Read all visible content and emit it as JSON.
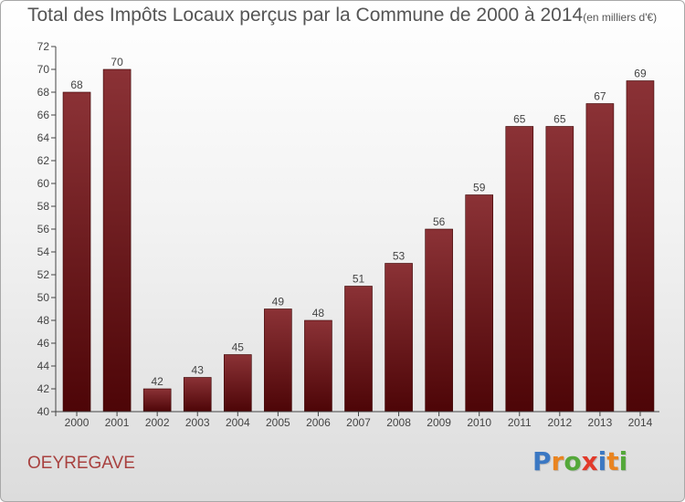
{
  "title": {
    "main": "Total des Impôts Locaux perçus par la Commune de 2000 à 2014",
    "unit": "(en milliers d'€)"
  },
  "commune": "OEYREGAVE",
  "brand": {
    "letters": [
      "P",
      "r",
      "o",
      "x",
      "i",
      "t",
      "i"
    ],
    "colors": [
      "#3b78c3",
      "#e98420",
      "#54a83a",
      "#e23a2a",
      "#3b78c3",
      "#e98420",
      "#54a83a"
    ]
  },
  "colors": {
    "bar_top": "#8b3236",
    "bar_bottom": "#4d0507",
    "axis": "#444444",
    "label": "#444444"
  },
  "chart_data": {
    "type": "bar",
    "title": "Total des Impôts Locaux perçus par la Commune de 2000 à 2014 (en milliers d'€)",
    "xlabel": "",
    "ylabel": "",
    "categories": [
      "2000",
      "2001",
      "2002",
      "2003",
      "2004",
      "2005",
      "2006",
      "2007",
      "2008",
      "2009",
      "2010",
      "2011",
      "2012",
      "2013",
      "2014"
    ],
    "values": [
      68,
      70,
      42,
      43,
      45,
      49,
      48,
      51,
      53,
      56,
      59,
      65,
      65,
      67,
      69
    ],
    "ylim": [
      40,
      72
    ],
    "yticks": [
      40,
      42,
      44,
      46,
      48,
      50,
      52,
      54,
      56,
      58,
      60,
      62,
      64,
      66,
      68,
      70,
      72
    ],
    "grid": false,
    "data_labels": true
  }
}
